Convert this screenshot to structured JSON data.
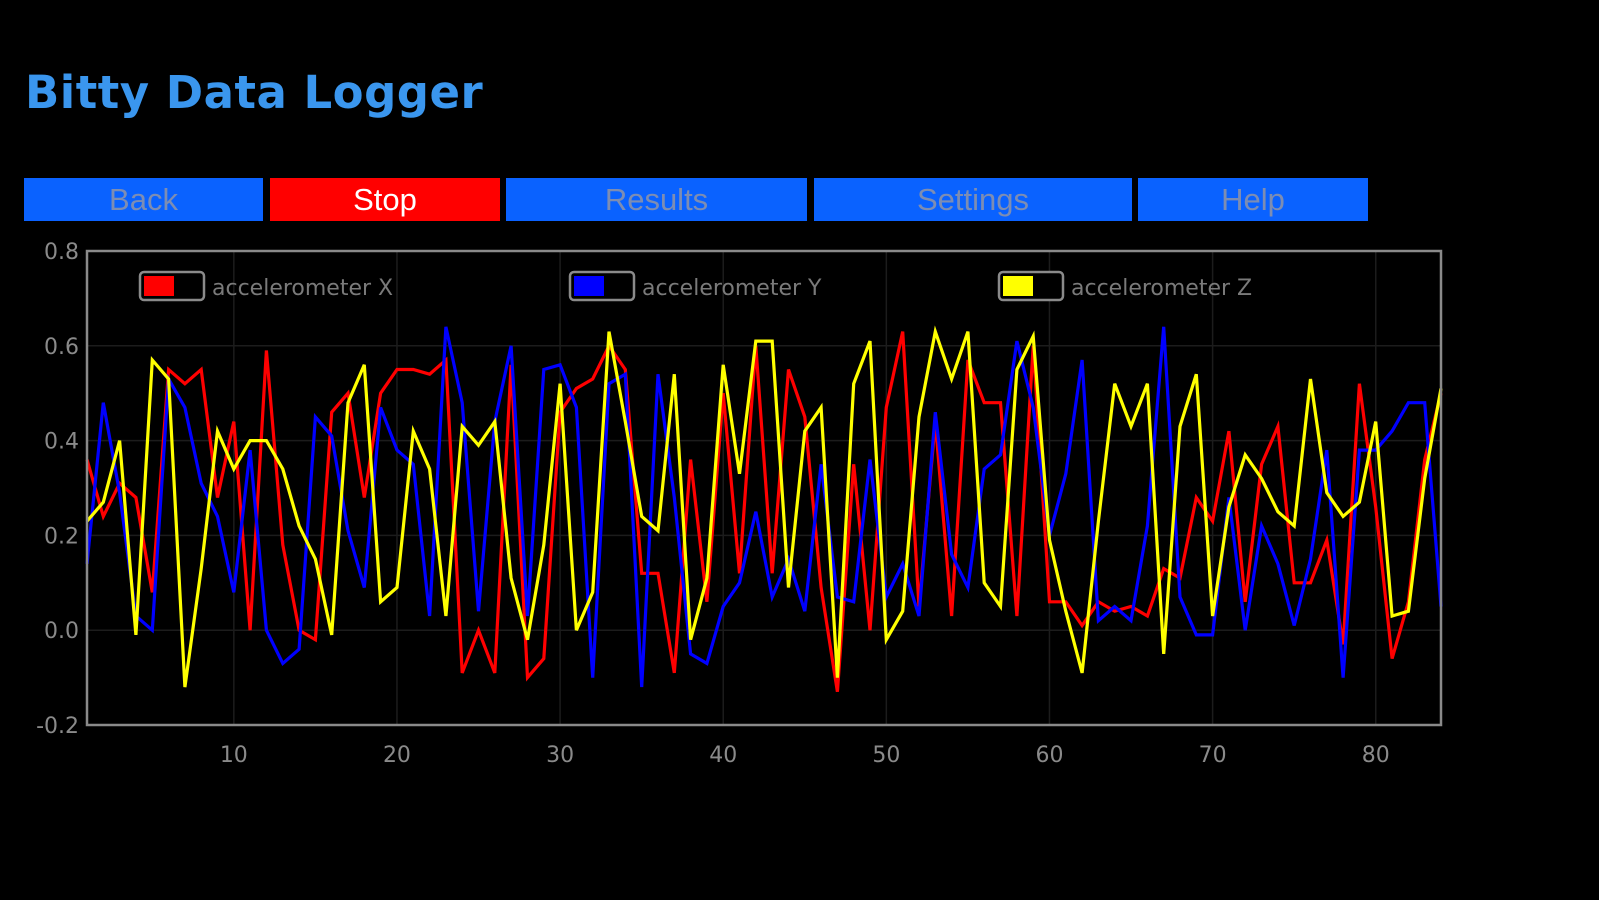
{
  "app": {
    "title": "Bitty Data Logger"
  },
  "nav": [
    {
      "label": "Back",
      "active": false
    },
    {
      "label": "Stop",
      "active": true
    },
    {
      "label": "Results",
      "active": false
    },
    {
      "label": "Settings",
      "active": false
    },
    {
      "label": "Help",
      "active": false
    }
  ],
  "colors": {
    "title": "#3a96ee",
    "nav_button": "#0a62ff",
    "stop_button": "#ff0000",
    "background": "#000000"
  },
  "chart_data": {
    "type": "line",
    "title": "",
    "xlabel": "",
    "ylabel": "",
    "xlim": [
      1,
      84
    ],
    "ylim": [
      -0.2,
      0.8
    ],
    "xticks": [
      10,
      20,
      30,
      40,
      50,
      60,
      70,
      80
    ],
    "yticks": [
      -0.2,
      0.0,
      0.2,
      0.4,
      0.6,
      0.8
    ],
    "ytick_labels": [
      "-0.2",
      "0.0",
      "0.2",
      "0.4",
      "0.6",
      "0.8"
    ],
    "grid": true,
    "legend": {
      "placement": "top",
      "layout": "horizontal"
    },
    "x": [
      1,
      2,
      3,
      4,
      5,
      6,
      7,
      8,
      9,
      10,
      11,
      12,
      13,
      14,
      15,
      16,
      17,
      18,
      19,
      20,
      21,
      22,
      23,
      24,
      25,
      26,
      27,
      28,
      29,
      30,
      31,
      32,
      33,
      34,
      35,
      36,
      37,
      38,
      39,
      40,
      41,
      42,
      43,
      44,
      45,
      46,
      47,
      48,
      49,
      50,
      51,
      52,
      53,
      54,
      55,
      56,
      57,
      58,
      59,
      60,
      61,
      62,
      63,
      64,
      65,
      66,
      67,
      68,
      69,
      70,
      71,
      72,
      73,
      74,
      75,
      76,
      77,
      78,
      79,
      80,
      81,
      82,
      83,
      84
    ],
    "series": [
      {
        "name": "accelerometer X",
        "color": "#ff0000",
        "values": [
          0.36,
          0.24,
          0.31,
          0.28,
          0.08,
          0.55,
          0.52,
          0.55,
          0.28,
          0.44,
          0.0,
          0.59,
          0.18,
          0.0,
          -0.02,
          0.46,
          0.5,
          0.28,
          0.5,
          0.55,
          0.55,
          0.54,
          0.57,
          -0.09,
          -0.0,
          -0.09,
          0.56,
          -0.1,
          -0.06,
          0.46,
          0.51,
          0.53,
          0.6,
          0.55,
          0.12,
          0.12,
          -0.09,
          0.36,
          0.06,
          0.5,
          0.12,
          0.6,
          0.12,
          0.55,
          0.45,
          0.09,
          -0.13,
          0.35,
          0.0,
          0.47,
          0.63,
          0.05,
          0.44,
          0.03,
          0.57,
          0.48,
          0.48,
          0.03,
          0.6,
          0.06,
          0.06,
          0.01,
          0.06,
          0.04,
          0.05,
          0.03,
          0.13,
          0.11,
          0.28,
          0.23,
          0.42,
          0.06,
          0.35,
          0.43,
          0.1,
          0.1,
          0.19,
          -0.03,
          0.52,
          0.26,
          -0.06,
          0.06,
          0.36,
          0.5
        ]
      },
      {
        "name": "accelerometer Y",
        "color": "#0000ff",
        "values": [
          0.14,
          0.48,
          0.29,
          0.03,
          0.0,
          0.53,
          0.47,
          0.31,
          0.24,
          0.08,
          0.38,
          -0.0,
          -0.07,
          -0.04,
          0.45,
          0.41,
          0.21,
          0.09,
          0.47,
          0.38,
          0.35,
          0.03,
          0.64,
          0.48,
          0.04,
          0.44,
          0.6,
          0.03,
          0.55,
          0.56,
          0.47,
          -0.1,
          0.52,
          0.54,
          -0.12,
          0.54,
          0.28,
          -0.05,
          -0.07,
          0.05,
          0.1,
          0.25,
          0.07,
          0.15,
          0.04,
          0.35,
          0.07,
          0.06,
          0.36,
          0.07,
          0.14,
          0.03,
          0.46,
          0.16,
          0.09,
          0.34,
          0.37,
          0.61,
          0.47,
          0.2,
          0.33,
          0.57,
          0.02,
          0.05,
          0.02,
          0.22,
          0.64,
          0.07,
          -0.01,
          -0.01,
          0.28,
          0.0,
          0.22,
          0.14,
          0.01,
          0.15,
          0.38,
          -0.1,
          0.38,
          0.38,
          0.42,
          0.48,
          0.48,
          0.05
        ]
      },
      {
        "name": "accelerometer Z",
        "color": "#ffff00",
        "values": [
          0.23,
          0.27,
          0.4,
          -0.01,
          0.57,
          0.53,
          -0.12,
          0.13,
          0.42,
          0.34,
          0.4,
          0.4,
          0.34,
          0.22,
          0.15,
          -0.01,
          0.48,
          0.56,
          0.06,
          0.09,
          0.42,
          0.34,
          0.03,
          0.43,
          0.39,
          0.44,
          0.11,
          -0.02,
          0.18,
          0.52,
          0.0,
          0.08,
          0.63,
          0.44,
          0.24,
          0.21,
          0.54,
          -0.02,
          0.11,
          0.56,
          0.33,
          0.61,
          0.61,
          0.09,
          0.42,
          0.47,
          -0.1,
          0.52,
          0.61,
          -0.02,
          0.04,
          0.45,
          0.63,
          0.53,
          0.63,
          0.1,
          0.05,
          0.55,
          0.62,
          0.19,
          0.04,
          -0.09,
          0.23,
          0.52,
          0.43,
          0.52,
          -0.05,
          0.43,
          0.54,
          0.03,
          0.26,
          0.37,
          0.32,
          0.25,
          0.22,
          0.53,
          0.29,
          0.24,
          0.27,
          0.44,
          0.03,
          0.04,
          0.32,
          0.51
        ]
      }
    ]
  }
}
